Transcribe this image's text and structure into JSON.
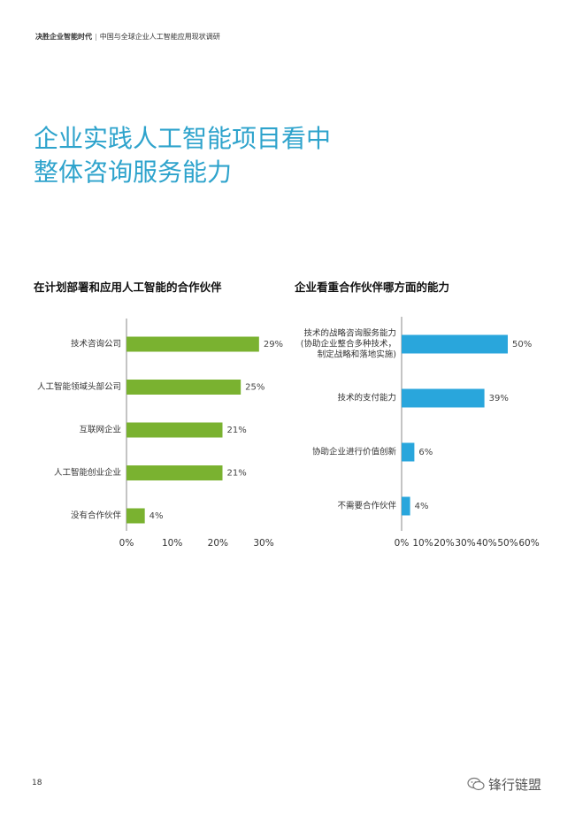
{
  "header": {
    "running_head_bold": "决胜企业智能时代",
    "running_head_sep": "|",
    "running_head_rest": "中国与全球企业人工智能应用现状调研"
  },
  "title": {
    "line1": "企业实践人工智能项目看中",
    "line2": "整体咨询服务能力"
  },
  "colors": {
    "accent": "#2ea3cc",
    "green_bar": "#7ab230",
    "blue_bar": "#29a6dc"
  },
  "chart_data": [
    {
      "type": "bar",
      "orientation": "horizontal",
      "title": "在计划部署和应用人工智能的合作伙伴",
      "categories": [
        [
          "技术咨询公司"
        ],
        [
          "人工智能领域头部公司"
        ],
        [
          "互联网企业"
        ],
        [
          "人工智能创业企业"
        ],
        [
          "没有合作伙伴"
        ]
      ],
      "values": [
        29,
        25,
        21,
        21,
        4
      ],
      "value_labels": [
        "29%",
        "25%",
        "21%",
        "21%",
        "4%"
      ],
      "xlim": [
        0,
        30
      ],
      "ticks": [
        "0%",
        "10%",
        "20%",
        "30%"
      ],
      "tick_values": [
        0,
        10,
        20,
        30
      ],
      "grid": false,
      "color": "#7ab230"
    },
    {
      "type": "bar",
      "orientation": "horizontal",
      "title": "企业看重合作伙伴哪方面的能力",
      "categories": [
        [
          "技术的战略咨询服务能力",
          "(协助企业整合多种技术，",
          "制定战略和落地实施)"
        ],
        [
          "技术的支付能力"
        ],
        [
          "协助企业进行价值创新"
        ],
        [
          "不需要合作伙伴"
        ]
      ],
      "values": [
        50,
        39,
        6,
        4
      ],
      "value_labels": [
        "50%",
        "39%",
        "6%",
        "4%"
      ],
      "xlim": [
        0,
        60
      ],
      "ticks": [
        "0%",
        "10%",
        "20%",
        "30%",
        "40%",
        "50%",
        "60%"
      ],
      "tick_values": [
        0,
        10,
        20,
        30,
        40,
        50,
        60
      ],
      "grid": false,
      "color": "#29a6dc"
    }
  ],
  "footer": {
    "page_number": "18",
    "watermark": "锋行链盟"
  }
}
